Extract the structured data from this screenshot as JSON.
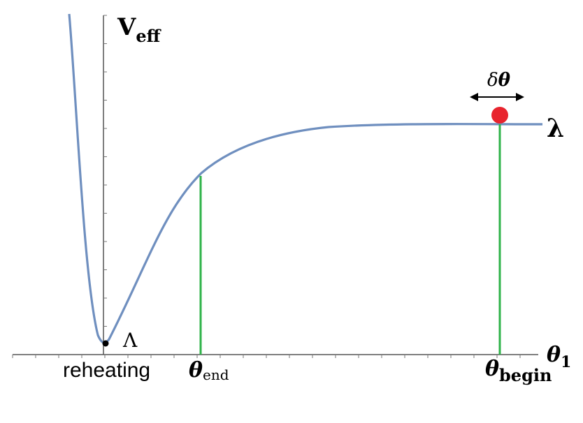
{
  "labels": {
    "y_axis_main": "V",
    "y_axis_sub": "eff",
    "lambda": "λ",
    "Lambda": "Λ",
    "delta": "δ",
    "theta_bold": "θ",
    "reheating": "reheating",
    "theta_end_main": "θ",
    "theta_end_sub": "end",
    "theta_begin_main": "θ",
    "theta_begin_sub": "begin",
    "x_axis_main": "θ",
    "x_axis_sub": "1"
  },
  "colors": {
    "curve": "#6f8fbf",
    "marker_line": "#2fb34a",
    "ball": "#e8242e",
    "axis": "#444444",
    "min_dot": "#000000"
  },
  "icons": {
    "arrow": "double-headed-arrow-icon",
    "ball": "red-ball-icon",
    "min_point": "black-dot-icon"
  }
}
